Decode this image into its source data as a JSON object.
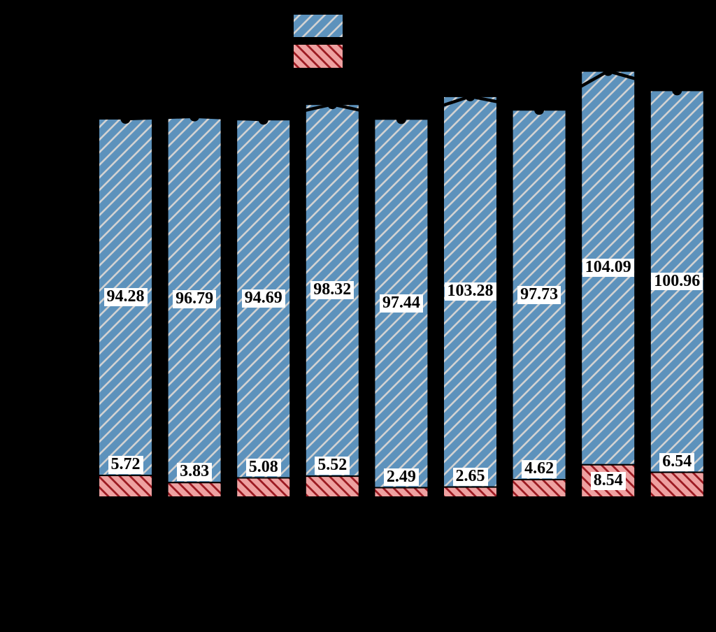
{
  "colors": {
    "background": "#000000",
    "blue_fill": "#5d92bc",
    "blue_hatch": "#d2d2d2",
    "red_fill": "#eea1a1",
    "red_hatch": "#9c1a22",
    "bar_edge": "#000000",
    "line_color": "#000000",
    "marker_color": "#000000",
    "label_bg": "#ffffff",
    "label_text": "#000000"
  },
  "chart_data": {
    "type": "bar",
    "stacked": true,
    "orientation": "vertical",
    "grid": false,
    "axes_text_visible": false,
    "baseline": 0,
    "series": [
      {
        "name": "upper-segment-blue-hatched",
        "hatch": "/",
        "color": "#5d92bc",
        "hatch_color": "#d2d2d2",
        "values": [
          94.28,
          96.79,
          94.69,
          98.32,
          97.44,
          103.28,
          97.73,
          104.09,
          100.96
        ],
        "labels": [
          "94.28",
          "96.79",
          "94.69",
          "98.32",
          "97.44",
          "103.28",
          "97.73",
          "104.09",
          "100.96"
        ]
      },
      {
        "name": "lower-segment-red-hatched",
        "hatch": "\\",
        "color": "#eea1a1",
        "hatch_color": "#9c1a22",
        "values": [
          5.72,
          3.83,
          5.08,
          5.52,
          2.49,
          2.65,
          4.62,
          8.54,
          6.54
        ],
        "labels": [
          "5.72",
          "3.83",
          "5.08",
          "5.52",
          "2.49",
          "2.65",
          "4.62",
          "8.54",
          "6.54"
        ]
      }
    ],
    "totals_marker_line": {
      "type": "line",
      "marker": "filled-circle",
      "color": "#000000",
      "values": [
        100.0,
        100.62,
        99.77,
        103.84,
        99.93,
        105.93,
        102.35,
        112.63,
        107.5
      ]
    },
    "legend": {
      "position": "top-center",
      "text_visible": false,
      "entries": [
        {
          "swatch": "blue-hatched-swatch"
        },
        {
          "swatch": "red-hatched-swatch"
        }
      ]
    }
  }
}
